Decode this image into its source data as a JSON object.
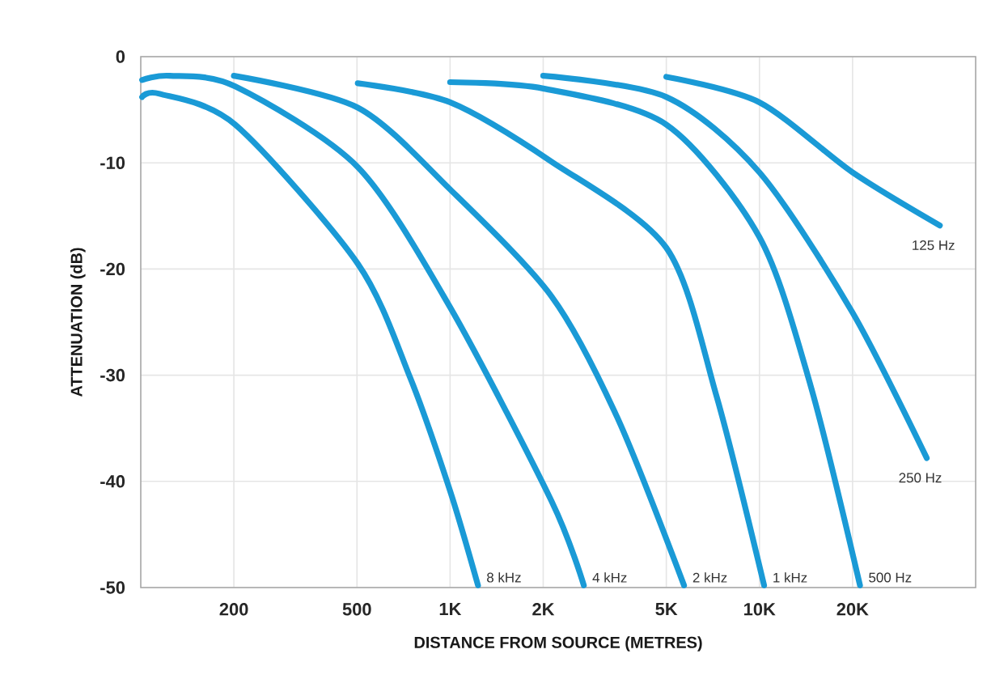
{
  "chart_data": {
    "type": "line",
    "xlabel": "DISTANCE FROM SOURCE (METRES)",
    "ylabel": "ATTENUATION (dB)",
    "xlim": [
      100,
      50000
    ],
    "xticks": [
      200,
      500,
      {
        "value": 1000,
        "label": "1K"
      },
      {
        "value": 2000,
        "label": "2K"
      },
      {
        "value": 5000,
        "label": "5K"
      },
      {
        "value": 10000,
        "label": "10K"
      },
      {
        "value": 20000,
        "label": "20K"
      }
    ],
    "ylim": [
      -50,
      0
    ],
    "yticks": [
      -50,
      -40,
      -30,
      -20,
      -10,
      0
    ],
    "grid": true,
    "log": "x",
    "marker": "none",
    "line_style": "solid",
    "series": [
      {
        "name": "8 kHz",
        "color": "#1a9ad6",
        "x": [
          101,
          115,
          202,
          503,
          742,
          1000,
          1231
        ],
        "values": [
          -3.8,
          -3.5,
          -6.4,
          -19.5,
          -30.2,
          -40.9,
          -49.8
        ]
      },
      {
        "name": "4 kHz",
        "color": "#1a9ad6",
        "x": [
          101,
          124,
          202,
          503,
          1000,
          2131,
          2706
        ],
        "values": [
          -2.2,
          -1.8,
          -2.8,
          -10.4,
          -23.6,
          -41.9,
          -49.8
        ]
      },
      {
        "name": "2 kHz",
        "color": "#1a9ad6",
        "x": [
          200,
          503,
          1000,
          2131,
          3473,
          5705
        ],
        "values": [
          -1.8,
          -4.8,
          -12.5,
          -22.6,
          -34,
          -49.8
        ]
      },
      {
        "name": "1 kHz",
        "color": "#1a9ad6",
        "x": [
          503,
          1000,
          2131,
          5000,
          7270,
          10353
        ],
        "values": [
          -2.5,
          -4.3,
          -9.9,
          -18,
          -32,
          -49.8
        ]
      },
      {
        "name": "500 Hz",
        "color": "#1a9ad6",
        "x": [
          1000,
          2000,
          5000,
          10000,
          14641,
          21140
        ],
        "values": [
          -2.4,
          -3.0,
          -6.4,
          -17,
          -31,
          -49.8
        ]
      },
      {
        "name": "250 Hz",
        "color": "#1a9ad6",
        "x": [
          2000,
          5000,
          10000,
          20000,
          34735
        ],
        "values": [
          -1.8,
          -3.8,
          -10.9,
          -24.1,
          -37.8
        ]
      },
      {
        "name": "125 Hz",
        "color": "#1a9ad6",
        "x": [
          5000,
          10000,
          20000,
          38300
        ],
        "values": [
          -1.9,
          -4.3,
          -10.9,
          -15.9
        ]
      }
    ]
  }
}
